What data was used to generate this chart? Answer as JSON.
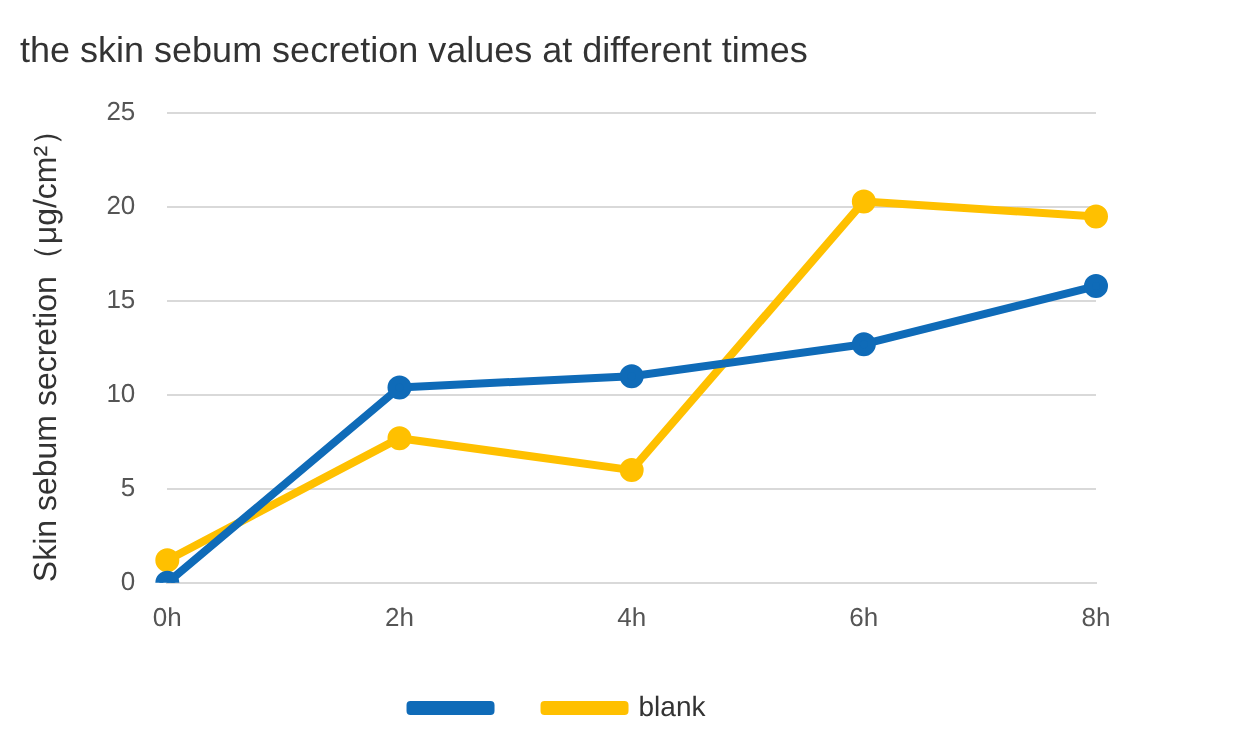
{
  "chart_data": {
    "type": "line",
    "title": "the skin sebum secretion values at different times",
    "ylabel": "Skin sebum secretion（μg/cm²）",
    "categories": [
      "0h",
      "2h",
      "4h",
      "6h",
      "8h"
    ],
    "series": [
      {
        "color": "#0f6bb8",
        "values": [
          0,
          10.4,
          11,
          12.7,
          15.8
        ]
      },
      {
        "name": "blank",
        "color": "#ffc000",
        "values": [
          1.2,
          7.7,
          6,
          20.3,
          19.5
        ]
      }
    ],
    "ylim": [
      0,
      25
    ],
    "yticks": [
      0,
      5,
      10,
      15,
      20,
      25
    ],
    "grid": "y",
    "legend": "bottom",
    "marker": "circle",
    "line_style": "solid"
  }
}
